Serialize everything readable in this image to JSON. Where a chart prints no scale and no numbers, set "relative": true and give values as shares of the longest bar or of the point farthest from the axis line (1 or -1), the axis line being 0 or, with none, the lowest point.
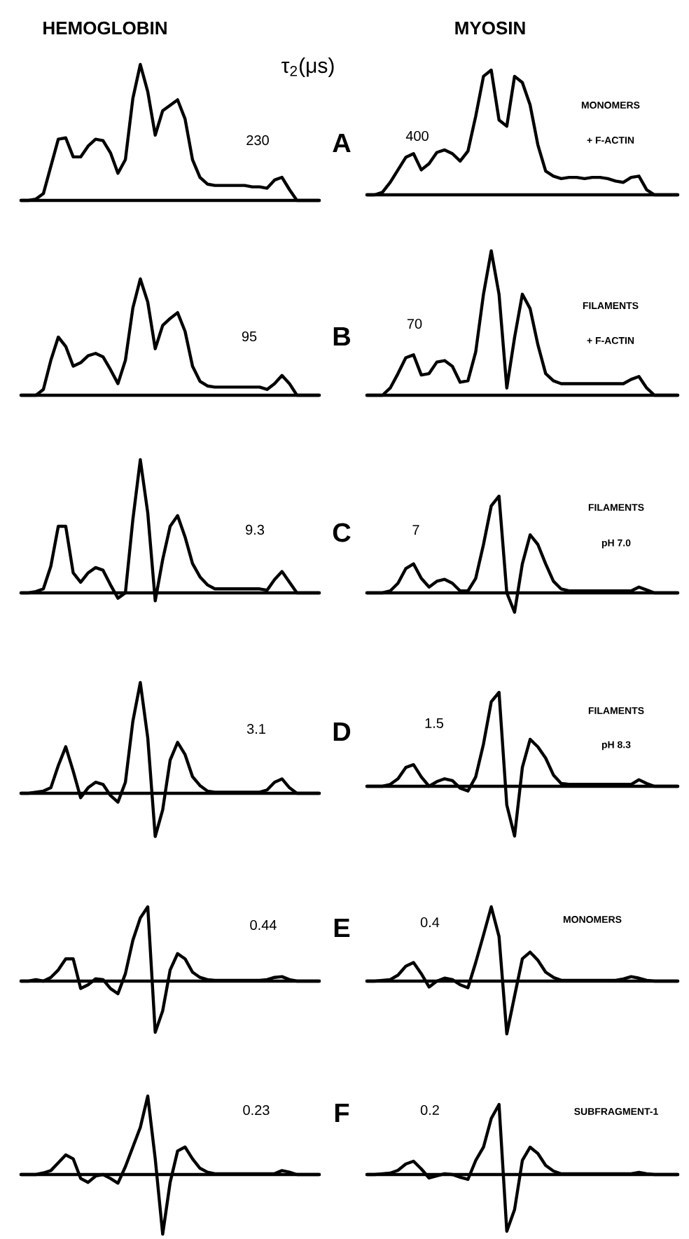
{
  "chart_data": [
    {
      "type": "line",
      "relative": true,
      "title": "HEMOGLOBIN",
      "color": "#000000",
      "annotations": [
        "τ$_{2}$(μs)",
        "230",
        "A"
      ],
      "categories": [
        null,
        null,
        null,
        null,
        null,
        null,
        null,
        null,
        null,
        null,
        null,
        null,
        null,
        null,
        null,
        null,
        null,
        null,
        null,
        null,
        null,
        null,
        null,
        null,
        null,
        null,
        null,
        null,
        null,
        null,
        null,
        null,
        null,
        null,
        null,
        null,
        null,
        null,
        null,
        null,
        null
      ],
      "values": [
        0,
        0,
        0.01,
        0.05,
        0.25,
        0.45,
        0.46,
        0.32,
        0.32,
        0.4,
        0.45,
        0.44,
        0.35,
        0.2,
        0.3,
        0.75,
        1.0,
        0.8,
        0.48,
        0.66,
        0.7,
        0.74,
        0.6,
        0.3,
        0.17,
        0.12,
        0.11,
        0.11,
        0.11,
        0.11,
        0.11,
        0.1,
        0.1,
        0.09,
        0.15,
        0.17,
        0.08,
        0,
        0,
        0,
        0
      ]
    },
    {
      "type": "line",
      "relative": true,
      "title": "MYOSIN",
      "color": "#000000",
      "annotations": [
        "400",
        "MONOMERS",
        "+ F-ACTIN"
      ],
      "categories": [
        null,
        null,
        null,
        null,
        null,
        null,
        null,
        null,
        null,
        null,
        null,
        null,
        null,
        null,
        null,
        null,
        null,
        null,
        null,
        null,
        null,
        null,
        null,
        null,
        null,
        null,
        null,
        null,
        null,
        null,
        null,
        null,
        null,
        null,
        null,
        null,
        null,
        null,
        null,
        null,
        null
      ],
      "values": [
        0,
        0,
        0.02,
        0.1,
        0.2,
        0.3,
        0.33,
        0.2,
        0.25,
        0.34,
        0.36,
        0.33,
        0.27,
        0.35,
        0.63,
        0.95,
        1.0,
        0.6,
        0.55,
        0.95,
        0.9,
        0.72,
        0.4,
        0.19,
        0.15,
        0.13,
        0.14,
        0.14,
        0.13,
        0.14,
        0.14,
        0.13,
        0.11,
        0.1,
        0.14,
        0.15,
        0.04,
        0,
        0,
        0,
        0
      ]
    },
    {
      "type": "line",
      "relative": true,
      "color": "#000000",
      "annotations": [
        "95",
        "B"
      ],
      "categories": [
        null,
        null,
        null,
        null,
        null,
        null,
        null,
        null,
        null,
        null,
        null,
        null,
        null,
        null,
        null,
        null,
        null,
        null,
        null,
        null,
        null,
        null,
        null,
        null,
        null,
        null,
        null,
        null,
        null,
        null,
        null,
        null,
        null,
        null,
        null,
        null,
        null,
        null,
        null,
        null,
        null
      ],
      "values": [
        0,
        0,
        0,
        0.05,
        0.3,
        0.5,
        0.42,
        0.25,
        0.28,
        0.34,
        0.36,
        0.33,
        0.22,
        0.1,
        0.3,
        0.75,
        1.0,
        0.8,
        0.4,
        0.6,
        0.66,
        0.71,
        0.55,
        0.25,
        0.12,
        0.08,
        0.07,
        0.07,
        0.07,
        0.07,
        0.07,
        0.07,
        0.07,
        0.05,
        0.1,
        0.17,
        0.1,
        0,
        0,
        0,
        0
      ]
    },
    {
      "type": "line",
      "relative": true,
      "color": "#000000",
      "annotations": [
        "70",
        "FILAMENTS",
        "+ F-ACTIN"
      ],
      "categories": [
        null,
        null,
        null,
        null,
        null,
        null,
        null,
        null,
        null,
        null,
        null,
        null,
        null,
        null,
        null,
        null,
        null,
        null,
        null,
        null,
        null,
        null,
        null,
        null,
        null,
        null,
        null,
        null,
        null,
        null,
        null,
        null,
        null,
        null,
        null,
        null,
        null,
        null,
        null,
        null,
        null
      ],
      "values": [
        0,
        0,
        0,
        0.05,
        0.15,
        0.26,
        0.28,
        0.14,
        0.15,
        0.23,
        0.24,
        0.2,
        0.09,
        0.1,
        0.3,
        0.7,
        1.0,
        0.7,
        0.05,
        0.4,
        0.7,
        0.6,
        0.35,
        0.15,
        0.1,
        0.08,
        0.08,
        0.08,
        0.08,
        0.08,
        0.08,
        0.08,
        0.08,
        0.08,
        0.11,
        0.13,
        0.05,
        0,
        0,
        0,
        0
      ]
    },
    {
      "type": "line",
      "relative": true,
      "color": "#000000",
      "annotations": [
        "9.3",
        "C"
      ],
      "categories": [
        null,
        null,
        null,
        null,
        null,
        null,
        null,
        null,
        null,
        null,
        null,
        null,
        null,
        null,
        null,
        null,
        null,
        null,
        null,
        null,
        null,
        null,
        null,
        null,
        null,
        null,
        null,
        null,
        null,
        null,
        null,
        null,
        null,
        null,
        null,
        null,
        null,
        null,
        null,
        null,
        null
      ],
      "values": [
        0,
        0,
        0.01,
        0.03,
        0.2,
        0.5,
        0.5,
        0.15,
        0.08,
        0.15,
        0.19,
        0.17,
        0.06,
        -0.04,
        0.0,
        0.55,
        1.0,
        0.6,
        -0.06,
        0.25,
        0.5,
        0.58,
        0.42,
        0.22,
        0.12,
        0.06,
        0.03,
        0.03,
        0.03,
        0.03,
        0.03,
        0.03,
        0.03,
        0.02,
        0.1,
        0.16,
        0.08,
        0,
        0,
        0,
        0
      ]
    },
    {
      "type": "line",
      "relative": true,
      "color": "#000000",
      "annotations": [
        "7",
        "FILAMENTS",
        "pH 7.0"
      ],
      "categories": [
        null,
        null,
        null,
        null,
        null,
        null,
        null,
        null,
        null,
        null,
        null,
        null,
        null,
        null,
        null,
        null,
        null,
        null,
        null,
        null,
        null,
        null,
        null,
        null,
        null,
        null,
        null,
        null,
        null,
        null,
        null,
        null,
        null,
        null,
        null,
        null,
        null,
        null,
        null,
        null,
        null
      ],
      "values": [
        0,
        0,
        0,
        0.02,
        0.1,
        0.25,
        0.3,
        0.15,
        0.06,
        0.12,
        0.14,
        0.1,
        0.02,
        0.02,
        0.15,
        0.5,
        0.9,
        1.0,
        0.0,
        -0.2,
        0.3,
        0.6,
        0.5,
        0.3,
        0.12,
        0.04,
        0.02,
        0.02,
        0.02,
        0.02,
        0.02,
        0.02,
        0.02,
        0.02,
        0.02,
        0.06,
        0.03,
        0,
        0,
        0,
        0
      ]
    },
    {
      "type": "line",
      "relative": true,
      "color": "#000000",
      "annotations": [
        "3.1",
        "D"
      ],
      "categories": [
        null,
        null,
        null,
        null,
        null,
        null,
        null,
        null,
        null,
        null,
        null,
        null,
        null,
        null,
        null,
        null,
        null,
        null,
        null,
        null,
        null,
        null,
        null,
        null,
        null,
        null,
        null,
        null,
        null,
        null,
        null,
        null,
        null,
        null,
        null,
        null,
        null,
        null,
        null,
        null,
        null
      ],
      "values": [
        0,
        0,
        0.01,
        0.02,
        0.05,
        0.25,
        0.42,
        0.2,
        -0.04,
        0.05,
        0.1,
        0.08,
        -0.02,
        -0.08,
        0.1,
        0.65,
        1.0,
        0.5,
        -0.39,
        -0.15,
        0.3,
        0.46,
        0.35,
        0.15,
        0.07,
        0.02,
        0.01,
        0.01,
        0.01,
        0.01,
        0.01,
        0.01,
        0.01,
        0.03,
        0.1,
        0.13,
        0.05,
        0,
        0,
        0,
        0
      ]
    },
    {
      "type": "line",
      "relative": true,
      "color": "#000000",
      "annotations": [
        "1.5",
        "FILAMENTS",
        "pH 8.3"
      ],
      "categories": [
        null,
        null,
        null,
        null,
        null,
        null,
        null,
        null,
        null,
        null,
        null,
        null,
        null,
        null,
        null,
        null,
        null,
        null,
        null,
        null,
        null,
        null,
        null,
        null,
        null,
        null,
        null,
        null,
        null,
        null,
        null,
        null,
        null,
        null,
        null,
        null,
        null,
        null,
        null,
        null,
        null
      ],
      "values": [
        0,
        0,
        0,
        0.02,
        0.08,
        0.2,
        0.23,
        0.1,
        0,
        0.05,
        0.08,
        0.06,
        -0.02,
        -0.05,
        0.1,
        0.45,
        0.9,
        1.0,
        -0.2,
        -0.53,
        0.2,
        0.5,
        0.42,
        0.3,
        0.12,
        0.03,
        0.02,
        0.02,
        0.02,
        0.02,
        0.02,
        0.02,
        0.02,
        0.02,
        0.02,
        0.07,
        0.03,
        0,
        0,
        0,
        0
      ]
    },
    {
      "type": "line",
      "relative": true,
      "color": "#000000",
      "annotations": [
        "0.44",
        "E"
      ],
      "categories": [
        null,
        null,
        null,
        null,
        null,
        null,
        null,
        null,
        null,
        null,
        null,
        null,
        null,
        null,
        null,
        null,
        null,
        null,
        null,
        null,
        null,
        null,
        null,
        null,
        null,
        null,
        null,
        null,
        null,
        null,
        null,
        null,
        null,
        null,
        null,
        null,
        null,
        null,
        null,
        null,
        null
      ],
      "values": [
        0,
        0,
        0.02,
        0,
        0.05,
        0.15,
        0.3,
        0.3,
        -0.1,
        -0.05,
        0.03,
        0.02,
        -0.1,
        -0.17,
        0.1,
        0.55,
        0.85,
        1.0,
        -0.69,
        -0.4,
        0.15,
        0.37,
        0.3,
        0.12,
        0.05,
        0.02,
        0.01,
        0.01,
        0.01,
        0.01,
        0.01,
        0.01,
        0.01,
        0.02,
        0.05,
        0.06,
        0.02,
        0,
        0,
        0,
        0
      ]
    },
    {
      "type": "line",
      "relative": true,
      "color": "#000000",
      "annotations": [
        "0.4",
        "MONOMERS"
      ],
      "categories": [
        null,
        null,
        null,
        null,
        null,
        null,
        null,
        null,
        null,
        null,
        null,
        null,
        null,
        null,
        null,
        null,
        null,
        null,
        null,
        null,
        null,
        null,
        null,
        null,
        null,
        null,
        null,
        null,
        null,
        null,
        null,
        null,
        null,
        null,
        null,
        null,
        null,
        null,
        null,
        null,
        null
      ],
      "values": [
        0,
        0,
        0.01,
        0.02,
        0.08,
        0.2,
        0.25,
        0.1,
        -0.08,
        0,
        0.04,
        0.02,
        -0.05,
        -0.09,
        0.25,
        0.62,
        1.0,
        0.6,
        -0.71,
        -0.2,
        0.3,
        0.39,
        0.28,
        0.12,
        0.05,
        0.01,
        0.01,
        0.01,
        0.01,
        0.01,
        0.01,
        0.01,
        0.01,
        0.03,
        0.06,
        0.04,
        0.01,
        0,
        0,
        0,
        0
      ]
    },
    {
      "type": "line",
      "relative": true,
      "color": "#000000",
      "annotations": [
        "0.23",
        "F"
      ],
      "categories": [
        null,
        null,
        null,
        null,
        null,
        null,
        null,
        null,
        null,
        null,
        null,
        null,
        null,
        null,
        null,
        null,
        null,
        null,
        null,
        null,
        null,
        null,
        null,
        null,
        null,
        null,
        null,
        null,
        null,
        null,
        null,
        null,
        null,
        null,
        null,
        null,
        null,
        null,
        null,
        null,
        null
      ],
      "values": [
        0,
        0,
        0,
        0.02,
        0.05,
        0.15,
        0.25,
        0.2,
        -0.05,
        -0.1,
        -0.02,
        0,
        -0.05,
        -0.11,
        0.1,
        0.35,
        0.6,
        1.0,
        0.2,
        -0.76,
        -0.1,
        0.3,
        0.35,
        0.2,
        0.08,
        0.03,
        0.01,
        0.01,
        0.01,
        0.01,
        0.01,
        0.01,
        0.01,
        0.01,
        0.01,
        0.05,
        0.03,
        0,
        0,
        0,
        0
      ]
    },
    {
      "type": "line",
      "relative": true,
      "color": "#000000",
      "annotations": [
        "0.2",
        "SUBFRAGMENT-1"
      ],
      "categories": [
        null,
        null,
        null,
        null,
        null,
        null,
        null,
        null,
        null,
        null,
        null,
        null,
        null,
        null,
        null,
        null,
        null,
        null,
        null,
        null,
        null,
        null,
        null,
        null,
        null,
        null,
        null,
        null,
        null,
        null,
        null,
        null,
        null,
        null,
        null,
        null,
        null,
        null,
        null,
        null,
        null
      ],
      "values": [
        0,
        0,
        0.01,
        0.02,
        0.06,
        0.15,
        0.19,
        0.08,
        -0.05,
        -0.02,
        0.01,
        0,
        -0.04,
        -0.07,
        0.2,
        0.39,
        0.8,
        1.0,
        -0.81,
        -0.5,
        0.2,
        0.39,
        0.3,
        0.13,
        0.05,
        0.01,
        0.01,
        0.01,
        0.01,
        0.01,
        0.01,
        0.01,
        0.01,
        0.01,
        0.01,
        0.03,
        0.01,
        0,
        0,
        0,
        0
      ]
    }
  ]
}
